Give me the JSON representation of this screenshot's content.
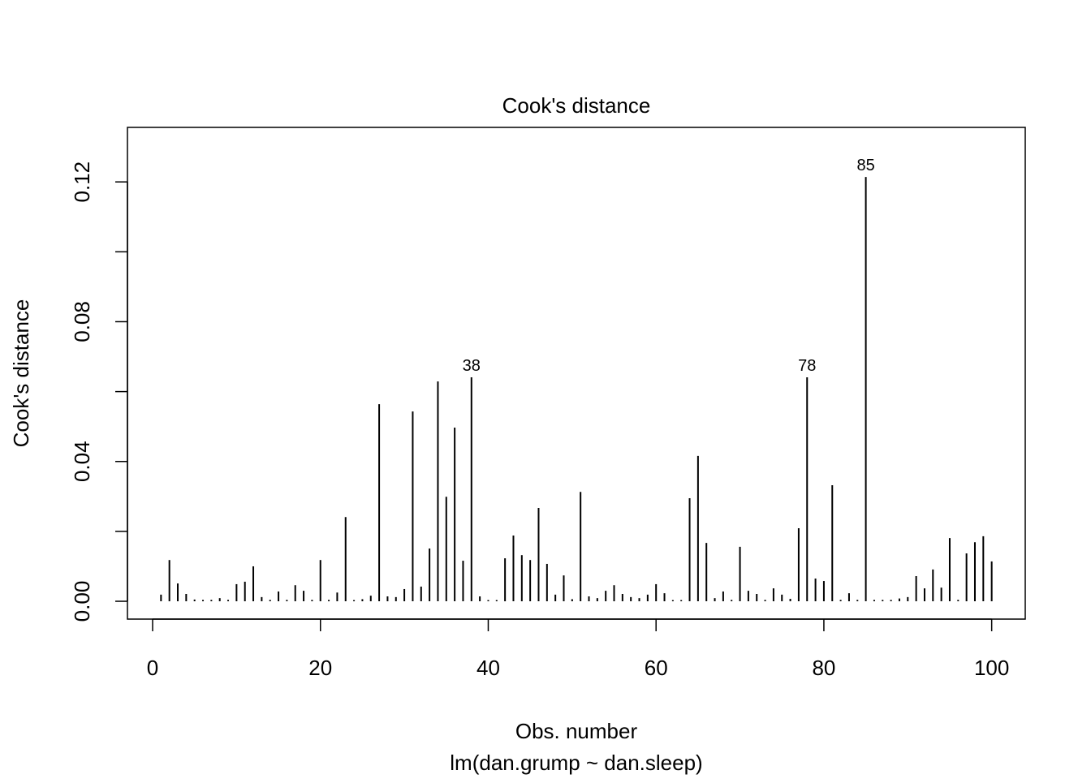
{
  "chart_data": {
    "type": "bar",
    "style": "vertical line segments (type h)",
    "title": "Cook's distance",
    "xlabel": "Obs. number",
    "subtitle": "lm(dan.grump ~ dan.sleep)",
    "ylabel": "Cook's distance",
    "xlim": [
      -3,
      104
    ],
    "ylim": [
      -0.0051,
      0.1356
    ],
    "xticks": [
      0,
      20,
      40,
      60,
      80,
      100
    ],
    "xtick_labels": [
      "0",
      "20",
      "40",
      "60",
      "80",
      "100"
    ],
    "yticks": [
      0,
      0.02,
      0.04,
      0.06,
      0.08,
      0.1,
      0.12
    ],
    "ytick_labels": [
      "0.00",
      "",
      "0.04",
      "",
      "0.08",
      "",
      "0.12"
    ],
    "grid": false,
    "annotations": [
      {
        "x": 38,
        "label": "38"
      },
      {
        "x": 78,
        "label": "78"
      },
      {
        "x": 85,
        "label": "85"
      }
    ],
    "x": [
      1,
      2,
      3,
      4,
      5,
      6,
      7,
      8,
      9,
      10,
      11,
      12,
      13,
      14,
      15,
      16,
      17,
      18,
      19,
      20,
      21,
      22,
      23,
      24,
      25,
      26,
      27,
      28,
      29,
      30,
      31,
      32,
      33,
      34,
      35,
      36,
      37,
      38,
      39,
      40,
      41,
      42,
      43,
      44,
      45,
      46,
      47,
      48,
      49,
      50,
      51,
      52,
      53,
      54,
      55,
      56,
      57,
      58,
      59,
      60,
      61,
      62,
      63,
      64,
      65,
      66,
      67,
      68,
      69,
      70,
      71,
      72,
      73,
      74,
      75,
      76,
      77,
      78,
      79,
      80,
      81,
      82,
      83,
      84,
      85,
      86,
      87,
      88,
      89,
      90,
      91,
      92,
      93,
      94,
      95,
      96,
      97,
      98,
      99,
      100
    ],
    "values": [
      0.0019,
      0.0118,
      0.0051,
      0.0021,
      0.0005,
      0.0004,
      0.0004,
      0.0009,
      0.0004,
      0.0049,
      0.0056,
      0.01,
      0.0012,
      0.0004,
      0.0028,
      0.0004,
      0.0046,
      0.003,
      0.0004,
      0.0118,
      0.0004,
      0.0025,
      0.0241,
      0.0003,
      0.0006,
      0.0016,
      0.0564,
      0.0014,
      0.0012,
      0.0035,
      0.0543,
      0.0042,
      0.0151,
      0.0629,
      0.0299,
      0.0497,
      0.0116,
      0.0641,
      0.0014,
      0.0003,
      0.0003,
      0.0123,
      0.0188,
      0.0132,
      0.0118,
      0.0267,
      0.0107,
      0.0019,
      0.0074,
      0.0006,
      0.0313,
      0.0014,
      0.0009,
      0.003,
      0.0046,
      0.0021,
      0.0012,
      0.0009,
      0.0019,
      0.0049,
      0.0023,
      0.0003,
      0.0003,
      0.0295,
      0.0416,
      0.0167,
      0.0009,
      0.0028,
      0.0004,
      0.0156,
      0.003,
      0.0021,
      0.0004,
      0.0037,
      0.0019,
      0.0007,
      0.0209,
      0.0641,
      0.0065,
      0.0058,
      0.0332,
      0.0004,
      0.0023,
      0.0004,
      0.1214,
      0.0004,
      0.0004,
      0.0004,
      0.0008,
      0.0012,
      0.0072,
      0.0037,
      0.0091,
      0.0039,
      0.0181,
      0.0004,
      0.0137,
      0.0169,
      0.0186,
      0.0114
    ],
    "color": "#000000"
  }
}
